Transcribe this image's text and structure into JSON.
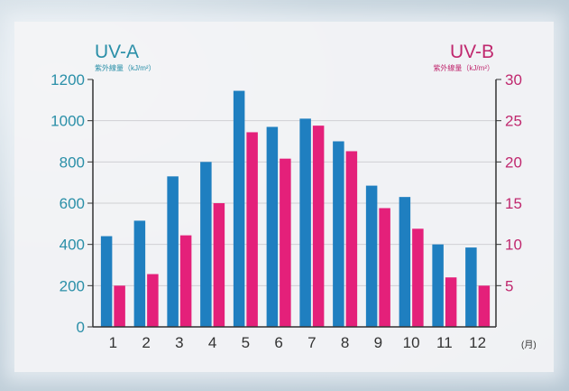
{
  "chart_data": {
    "type": "bar",
    "categories": [
      "1",
      "2",
      "3",
      "4",
      "5",
      "6",
      "7",
      "8",
      "9",
      "10",
      "11",
      "12"
    ],
    "x_unit": "(月)",
    "series": [
      {
        "name": "UV-A",
        "axis": "left",
        "unit": "紫外線量（kJ/m²）",
        "color": "#1f7fc0",
        "values": [
          440,
          515,
          730,
          800,
          1145,
          970,
          1010,
          900,
          685,
          630,
          400,
          385
        ]
      },
      {
        "name": "UV-B",
        "axis": "right",
        "unit": "紫外線量（kJ/m²）",
        "color": "#e4207a",
        "values": [
          5.0,
          6.4,
          11.1,
          15.0,
          23.6,
          20.4,
          24.4,
          21.3,
          14.4,
          11.9,
          6.0,
          5.0
        ]
      }
    ],
    "left_axis": {
      "title": "UV-A",
      "unit": "紫外線量（kJ/m²）",
      "ylim": [
        0,
        1200
      ],
      "ticks": [
        "0",
        "200",
        "400",
        "600",
        "800",
        "1000",
        "1200"
      ],
      "color": "#2a8fa8"
    },
    "right_axis": {
      "title": "UV-B",
      "unit": "紫外線量（kJ/m²）",
      "ylim": [
        0,
        30
      ],
      "ticks": [
        "5",
        "10",
        "15",
        "20",
        "25",
        "30"
      ],
      "color": "#c0286e"
    },
    "grid": true
  }
}
